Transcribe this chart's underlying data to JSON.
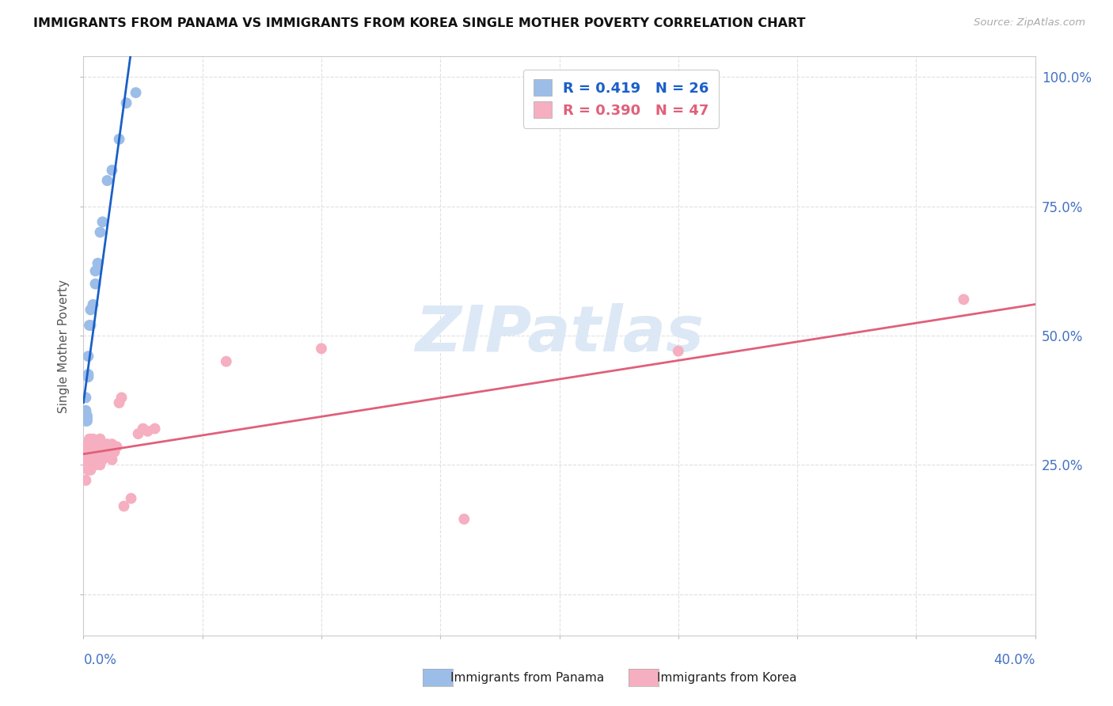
{
  "title": "IMMIGRANTS FROM PANAMA VS IMMIGRANTS FROM KOREA SINGLE MOTHER POVERTY CORRELATION CHART",
  "source": "Source: ZipAtlas.com",
  "ylabel": "Single Mother Poverty",
  "R_panama": 0.419,
  "N_panama": 26,
  "R_korea": 0.39,
  "N_korea": 47,
  "xlim": [
    0.0,
    0.4
  ],
  "ylim": [
    -0.08,
    1.04
  ],
  "panama_color": "#9bbde8",
  "korea_color": "#f5afc0",
  "panama_line_color": "#1a5fc8",
  "korea_line_color": "#e0607a",
  "dash_color": "#c0c8d8",
  "watermark_color": "#dce8f5",
  "background_color": "#ffffff",
  "grid_color": "#e0e0e0",
  "legend_panama": "Immigrants from Panama",
  "legend_korea": "Immigrants from Korea",
  "ytick_color": "#4472c4",
  "xtick_color": "#4472c4",
  "panama_x": [
    0.001,
    0.001,
    0.001,
    0.001,
    0.001,
    0.001,
    0.0015,
    0.0015,
    0.0015,
    0.002,
    0.002,
    0.002,
    0.0025,
    0.003,
    0.003,
    0.004,
    0.005,
    0.005,
    0.006,
    0.007,
    0.008,
    0.01,
    0.012,
    0.015,
    0.018,
    0.022
  ],
  "panama_y": [
    0.335,
    0.34,
    0.345,
    0.35,
    0.355,
    0.38,
    0.335,
    0.34,
    0.345,
    0.42,
    0.425,
    0.46,
    0.52,
    0.52,
    0.55,
    0.56,
    0.6,
    0.625,
    0.64,
    0.7,
    0.72,
    0.8,
    0.82,
    0.88,
    0.95,
    0.97
  ],
  "korea_x": [
    0.001,
    0.001,
    0.001,
    0.001,
    0.0015,
    0.0015,
    0.002,
    0.002,
    0.002,
    0.0025,
    0.003,
    0.003,
    0.003,
    0.004,
    0.004,
    0.004,
    0.005,
    0.005,
    0.005,
    0.006,
    0.006,
    0.007,
    0.007,
    0.007,
    0.008,
    0.008,
    0.009,
    0.009,
    0.01,
    0.01,
    0.012,
    0.012,
    0.013,
    0.014,
    0.015,
    0.016,
    0.017,
    0.02,
    0.023,
    0.025,
    0.027,
    0.03,
    0.06,
    0.1,
    0.16,
    0.25,
    0.37
  ],
  "korea_y": [
    0.22,
    0.245,
    0.255,
    0.28,
    0.26,
    0.29,
    0.24,
    0.26,
    0.275,
    0.3,
    0.24,
    0.26,
    0.29,
    0.26,
    0.27,
    0.3,
    0.25,
    0.265,
    0.285,
    0.275,
    0.295,
    0.25,
    0.27,
    0.3,
    0.26,
    0.285,
    0.265,
    0.28,
    0.27,
    0.29,
    0.26,
    0.29,
    0.275,
    0.285,
    0.37,
    0.38,
    0.17,
    0.185,
    0.31,
    0.32,
    0.315,
    0.32,
    0.45,
    0.475,
    0.145,
    0.47,
    0.57
  ],
  "watermark": "ZIPatlas"
}
